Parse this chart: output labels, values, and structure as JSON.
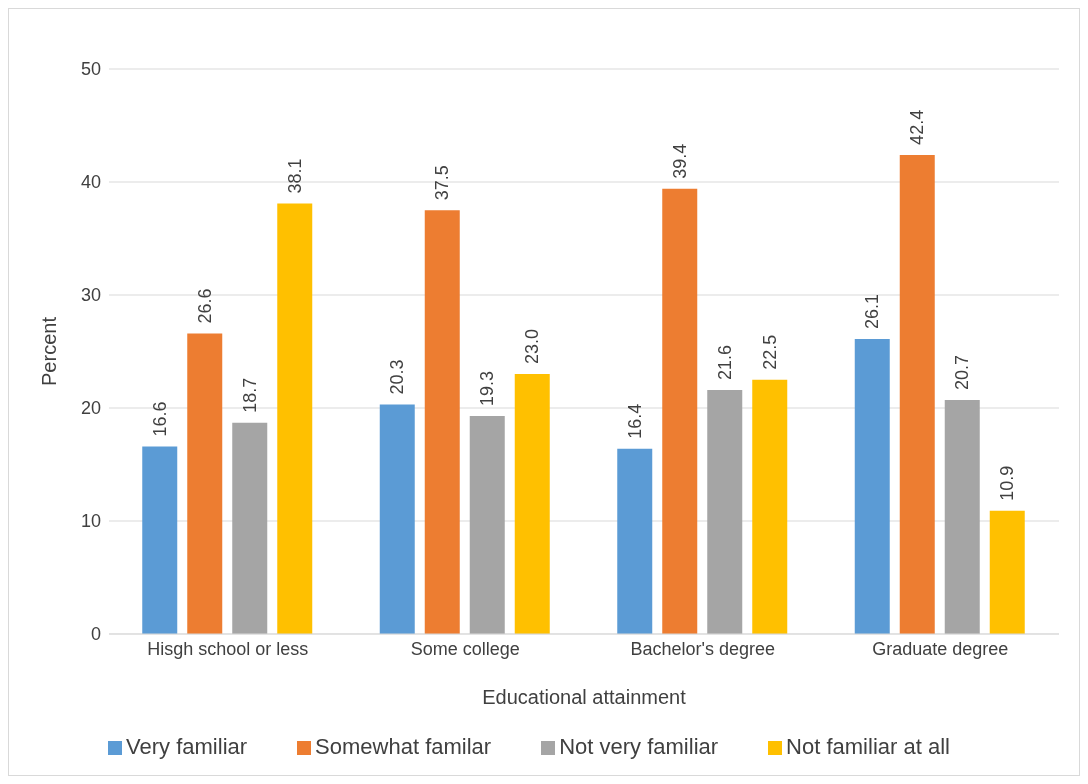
{
  "chart_data": {
    "type": "bar",
    "xlabel": "Educational attainment",
    "ylabel": "Percent",
    "categories": [
      "Hisgh school or less",
      "Some college",
      "Bachelor's degree",
      "Graduate degree"
    ],
    "series": [
      {
        "name": "Very familiar",
        "color": "#5b9bd5",
        "values": [
          16.6,
          20.3,
          16.4,
          26.1
        ],
        "value_labels": [
          "16.6",
          "20.3",
          "16.4",
          "26.1"
        ]
      },
      {
        "name": "Somewhat familar",
        "color": "#ed7d31",
        "values": [
          26.6,
          37.5,
          39.4,
          42.4
        ],
        "value_labels": [
          "26.6",
          "37.5",
          "39.4",
          "42.4"
        ]
      },
      {
        "name": "Not very familiar",
        "color": "#a5a5a5",
        "values": [
          18.7,
          19.3,
          21.6,
          20.7
        ],
        "value_labels": [
          "18.7",
          "19.3",
          "21.6",
          "20.7"
        ]
      },
      {
        "name": "Not familiar at all",
        "color": "#ffc000",
        "values": [
          38.1,
          23.0,
          22.5,
          10.9
        ],
        "value_labels": [
          "38.1",
          "23.0",
          "22.5",
          "10.9"
        ]
      }
    ],
    "ylim": [
      0,
      50
    ],
    "yticks": [
      0,
      10,
      20,
      30,
      40,
      50
    ],
    "grid": "y",
    "legend": "bottom"
  }
}
